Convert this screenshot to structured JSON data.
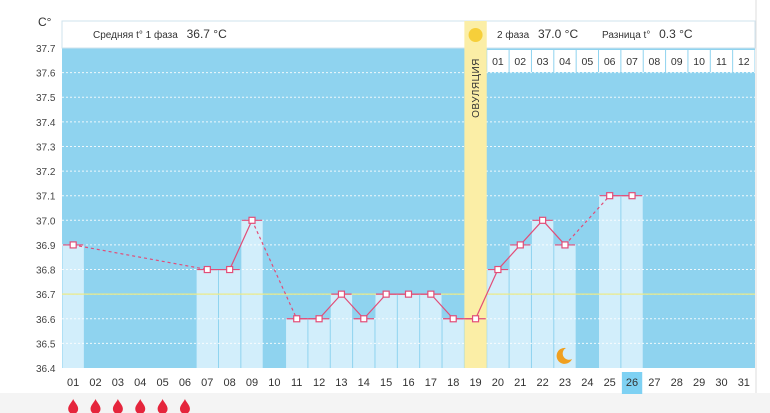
{
  "chart_data": {
    "type": "bar",
    "y_unit": "С°",
    "ylim": [
      36.4,
      37.7
    ],
    "y_ticks": [
      "37.7",
      "37.6",
      "37.5",
      "37.4",
      "37.3",
      "37.2",
      "37.1",
      "37.0",
      "36.9",
      "36.8",
      "36.7",
      "36.6",
      "36.5",
      "36.4"
    ],
    "x_labels": [
      "01",
      "02",
      "03",
      "04",
      "05",
      "06",
      "07",
      "08",
      "09",
      "10",
      "11",
      "12",
      "13",
      "14",
      "15",
      "16",
      "17",
      "18",
      "19",
      "20",
      "21",
      "22",
      "23",
      "24",
      "25",
      "26",
      "27",
      "28",
      "29",
      "30",
      "31"
    ],
    "values": [
      36.9,
      null,
      null,
      null,
      null,
      null,
      36.8,
      36.8,
      37.0,
      null,
      36.6,
      36.6,
      36.7,
      36.6,
      36.7,
      36.7,
      36.7,
      36.6,
      36.6,
      36.8,
      36.9,
      37.0,
      36.9,
      null,
      37.1,
      37.1,
      null,
      null,
      null,
      null,
      null
    ],
    "average_line": 36.7,
    "phase1": {
      "label": "Средняя t° 1 фаза",
      "value": "36.7 °C"
    },
    "phase2": {
      "label": "2 фаза",
      "value": "37.0 °C"
    },
    "difference": {
      "label": "Разница t°",
      "value": "0.3 °C"
    },
    "ovulation": {
      "label": "ОВУЛЯЦИЯ",
      "day": "19"
    },
    "phase2_day_labels": [
      "01",
      "02",
      "03",
      "04",
      "05",
      "06",
      "07",
      "08",
      "09",
      "10",
      "11",
      "12"
    ],
    "highlighted_day": "26",
    "menstruation_days": [
      "01",
      "02",
      "03",
      "04",
      "05",
      "06"
    ],
    "moon_day": "23",
    "colors": {
      "background": "#8fd3ef",
      "bar": "#d2eefb",
      "line": "#e24d78",
      "ovulation": "#fbeea6",
      "average": "#e9e98a",
      "highlight": "#7ed1f3",
      "drop": "#e5253c",
      "moon": "#f0a020",
      "sun": "#f6cf3a"
    }
  }
}
